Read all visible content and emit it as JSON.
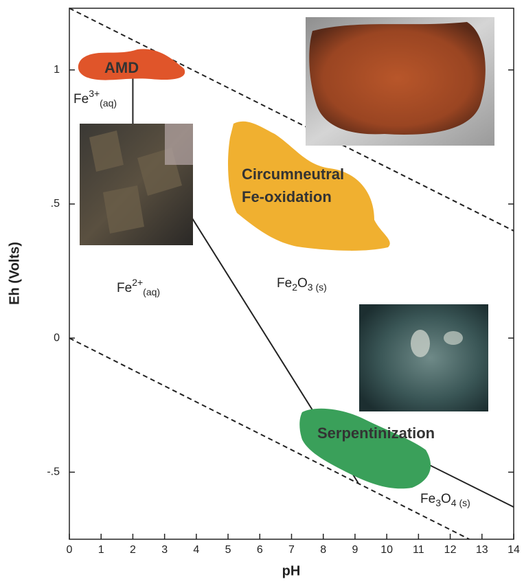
{
  "chart_data": {
    "type": "line",
    "x_label": "pH",
    "y_label": "Eh (Volts)",
    "xlim": [
      0,
      14
    ],
    "ylim": [
      -0.75,
      1.23
    ],
    "xticks": [
      0,
      1,
      2,
      3,
      4,
      5,
      6,
      7,
      8,
      9,
      10,
      11,
      12,
      13,
      14
    ],
    "yticks": [
      {
        "value": -0.5,
        "label": "-.5"
      },
      0,
      {
        "value": 0.5,
        "label": ".5"
      },
      1
    ],
    "series": [
      {
        "color": "#222222",
        "dashed": true,
        "x": [
          0,
          14
        ],
        "values": [
          1.23,
          0.4
        ]
      },
      {
        "color": "#222222",
        "dashed": true,
        "x": [
          0,
          12.6
        ],
        "values": [
          0,
          -0.75
        ]
      },
      {
        "color": "#222222",
        "dashed": false,
        "x": [
          2,
          2
        ],
        "values": [
          1.03,
          0.77
        ]
      },
      {
        "color": "#222222",
        "dashed": false,
        "x": [
          2,
          9.1
        ],
        "values": [
          0.8,
          -0.54
        ]
      },
      {
        "color": "#222222",
        "dashed": false,
        "x": [
          7.9,
          14
        ],
        "values": [
          -0.27,
          -0.63
        ]
      }
    ],
    "annotations": [
      {
        "text": [
          "AMD"
        ]
      },
      {
        "text": [
          "Fe",
          "3+",
          "(aq)"
        ]
      },
      {
        "text": [
          "Circumneutral"
        ]
      },
      {
        "text": [
          "Fe-oxidation"
        ]
      },
      {
        "text": [
          "Fe",
          "2+",
          "(aq)"
        ]
      },
      {
        "text": [
          "Fe",
          "2",
          "O",
          "3 (s)"
        ]
      },
      {
        "text": [
          "Serpentinization"
        ]
      },
      {
        "text": [
          "Fe",
          "3",
          "O",
          "4 (s)"
        ]
      }
    ]
  }
}
